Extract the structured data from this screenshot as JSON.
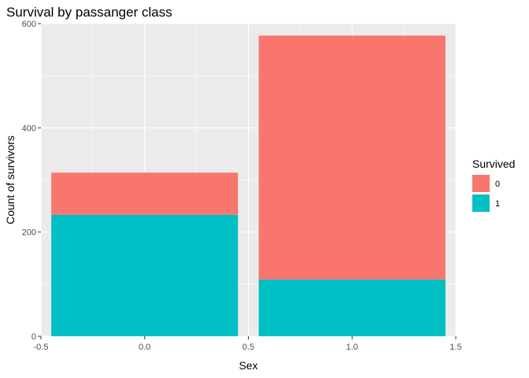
{
  "chart_data": {
    "type": "bar",
    "stacked": true,
    "title": "Survival by passanger class",
    "xlabel": "Sex",
    "ylabel": "Count of survivors",
    "x": [
      0,
      1
    ],
    "series": [
      {
        "name": "0",
        "values": [
          81,
          468
        ],
        "color": "#F8766D"
      },
      {
        "name": "1",
        "values": [
          233,
          109
        ],
        "color": "#00BFC4"
      }
    ],
    "bar_width": 0.9,
    "xlim": [
      -0.5,
      1.5
    ],
    "ylim": [
      0,
      600
    ],
    "x_ticks": [
      -0.5,
      0.0,
      0.5,
      1.0,
      1.5
    ],
    "x_tick_labels": [
      "-0.5",
      "0.0",
      "0.5",
      "1.0",
      "1.5"
    ],
    "y_ticks": [
      0,
      200,
      400,
      600
    ],
    "y_tick_labels": [
      "0",
      "200",
      "400",
      "600"
    ],
    "legend_title": "Survived",
    "legend_position": "right",
    "grid": true,
    "panel_background": "#EBEBEB"
  }
}
